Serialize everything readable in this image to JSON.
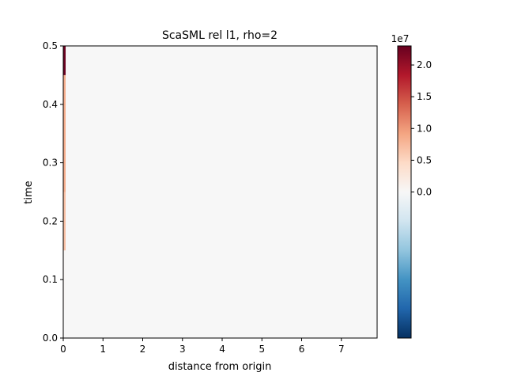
{
  "chart_data": {
    "type": "heatmap",
    "title": "ScaSML rel l1, rho=2",
    "xlabel": "distance from origin",
    "ylabel": "time",
    "xlim": [
      0,
      7.9
    ],
    "ylim": [
      0,
      0.5
    ],
    "xticks": [
      "0",
      "1",
      "2",
      "3",
      "4",
      "5",
      "6",
      "7"
    ],
    "yticks": [
      "0.0",
      "0.1",
      "0.2",
      "0.3",
      "0.4",
      "0.5"
    ],
    "background_value": 0,
    "cells": [
      {
        "x0": 0,
        "x1": 0.06,
        "y0": 0.0,
        "y1": 0.05,
        "value": 0
      },
      {
        "x0": 0,
        "x1": 0.06,
        "y0": 0.05,
        "y1": 0.15,
        "value": 300000
      },
      {
        "x0": 0,
        "x1": 0.06,
        "y0": 0.15,
        "y1": 0.25,
        "value": 7000000
      },
      {
        "x0": 0,
        "x1": 0.06,
        "y0": 0.25,
        "y1": 0.45,
        "value": 8500000
      },
      {
        "x0": 0,
        "x1": 0.06,
        "y0": 0.45,
        "y1": 0.5,
        "value": 22800000
      }
    ],
    "colorbar": {
      "colormap": "RdBu_r",
      "min": -23000000,
      "max": 23000000,
      "exponent_label": "1e7",
      "ticks": [
        {
          "value": 0,
          "label": "0.0"
        },
        {
          "value": 5000000,
          "label": "0.5"
        },
        {
          "value": 10000000,
          "label": "1.0"
        },
        {
          "value": 15000000,
          "label": "1.5"
        },
        {
          "value": 20000000,
          "label": "2.0"
        }
      ]
    },
    "grid": false
  }
}
